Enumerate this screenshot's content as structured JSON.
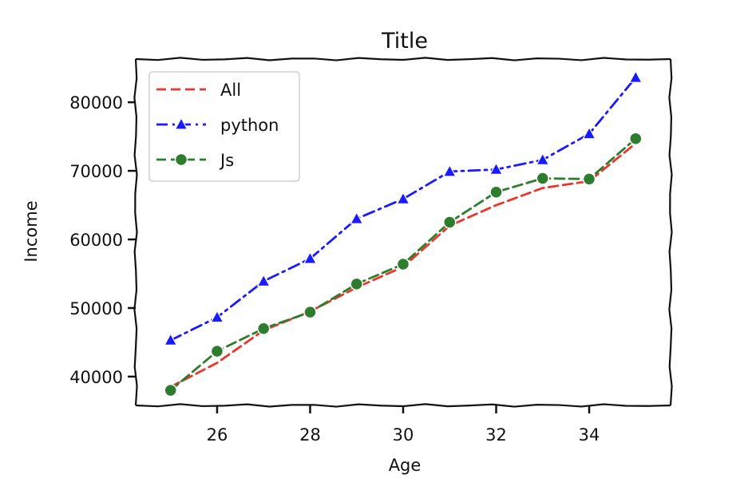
{
  "chart_data": {
    "type": "line",
    "title": "Title",
    "xlabel": "Age",
    "ylabel": "Income",
    "x": [
      25,
      26,
      27,
      28,
      29,
      30,
      31,
      32,
      33,
      34,
      35
    ],
    "xlim": [
      24.25,
      35.75
    ],
    "ylim": [
      35800,
      86300
    ],
    "xticks": [
      26,
      28,
      30,
      32,
      34
    ],
    "xtick_labels": [
      "26",
      "28",
      "30",
      "32",
      "34"
    ],
    "yticks": [
      40000,
      50000,
      60000,
      70000,
      80000
    ],
    "ytick_labels": [
      "40000",
      "50000",
      "60000",
      "70000",
      "80000"
    ],
    "grid": false,
    "legend_position": "top-left",
    "series": [
      {
        "name": "All",
        "color": "#e8372c",
        "linestyle": "dashed",
        "marker": "none",
        "values": [
          38500,
          42000,
          46750,
          49500,
          53000,
          56000,
          62000,
          65000,
          67500,
          68500,
          74000
        ]
      },
      {
        "name": "python",
        "color": "#1a1aff",
        "linestyle": "dashed",
        "marker": "triangle",
        "values": [
          45300,
          48650,
          53900,
          57200,
          63000,
          65900,
          69900,
          70200,
          71600,
          75400,
          83600
        ]
      },
      {
        "name": "Js",
        "color": "#2e7d2e",
        "linestyle": "dashed",
        "marker": "circle",
        "values": [
          38000,
          43700,
          47000,
          49400,
          53500,
          56400,
          62500,
          66900,
          68900,
          68800,
          74700
        ]
      }
    ]
  }
}
